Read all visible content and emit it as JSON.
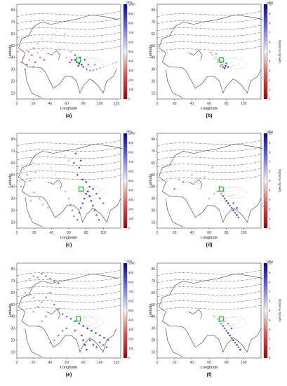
{
  "figure": {
    "panels": [
      {
        "label": "(a)",
        "unit": "hPa",
        "cbar_title": "",
        "cbar_ticks": [
          0,
          100,
          200,
          300,
          400,
          500,
          600,
          700,
          800,
          900,
          1000
        ],
        "x_ticks": [
          0,
          20,
          40,
          60,
          80,
          100,
          120
        ],
        "y_ticks": [
          10,
          20,
          30,
          40,
          50,
          60,
          70,
          80
        ],
        "xlabel": "Longitude",
        "ylabel": "Latitude"
      },
      {
        "label": "(b)",
        "unit": "g/kg",
        "cbar_title": "Specific Humidity",
        "cbar_ticks": [
          0,
          1,
          2,
          3,
          4,
          5,
          6,
          7,
          8,
          9,
          10
        ],
        "x_ticks": [
          0,
          20,
          40,
          60,
          80,
          100
        ],
        "y_ticks": [
          10,
          20,
          30,
          40,
          50,
          60,
          70,
          80
        ],
        "xlabel": "Longitude",
        "ylabel": "Latitude"
      },
      {
        "label": "(c)",
        "unit": "hPa",
        "cbar_title": "",
        "cbar_ticks": [
          0,
          100,
          200,
          300,
          400,
          500,
          600,
          700,
          800,
          900,
          1000
        ],
        "x_ticks": [
          0,
          20,
          40,
          60,
          80,
          100
        ],
        "y_ticks": [
          10,
          20,
          30,
          40,
          50,
          60,
          70,
          80
        ],
        "xlabel": "Longitude",
        "ylabel": "Latitude"
      },
      {
        "label": "(d)",
        "unit": "g/kg",
        "cbar_title": "Specific Humidity",
        "cbar_ticks": [
          0,
          1,
          2,
          3,
          4,
          5,
          6,
          7,
          8,
          9,
          10
        ],
        "x_ticks": [
          0,
          20,
          40,
          60,
          80,
          100
        ],
        "y_ticks": [
          10,
          20,
          30,
          40,
          50,
          60,
          70,
          80
        ],
        "xlabel": "Longitude",
        "ylabel": "Latitude"
      },
      {
        "label": "(e)",
        "unit": "hPa",
        "cbar_title": "",
        "cbar_ticks": [
          0,
          100,
          200,
          300,
          400,
          500,
          600,
          700,
          800,
          900,
          1000
        ],
        "x_ticks": [
          0,
          20,
          40,
          60,
          80,
          100,
          120
        ],
        "y_ticks": [
          10,
          20,
          30,
          40,
          50,
          60,
          70,
          80
        ],
        "xlabel": "Longitude",
        "ylabel": "Latitude"
      },
      {
        "label": "(f)",
        "unit": "g/kg",
        "cbar_title": "Specific Humidity",
        "cbar_ticks": [
          0,
          1,
          2,
          3,
          4,
          5,
          6,
          7,
          8,
          9,
          10
        ],
        "x_ticks": [
          0,
          20,
          40,
          60,
          80,
          100
        ],
        "y_ticks": [
          10,
          20,
          30,
          40,
          50,
          60,
          70,
          80
        ],
        "xlabel": "Longitude",
        "ylabel": "Latitude"
      }
    ]
  },
  "colors": {
    "low": "#c81e1e",
    "mid": "#f0f0f0",
    "high": "#1e1ec8",
    "source": "#22bb22",
    "coast": "#5a5a5a",
    "contour": "#888888"
  },
  "chart_data": [
    {
      "type": "scatter",
      "title": "",
      "xlabel": "Longitude",
      "ylabel": "Latitude",
      "xlim": [
        0,
        125
      ],
      "ylim": [
        5,
        85
      ],
      "colorbar": {
        "label": "hPa",
        "range": [
          0,
          1000
        ]
      },
      "points": [
        [
          8,
          40,
          250
        ],
        [
          12,
          34,
          180
        ],
        [
          15,
          38,
          300
        ],
        [
          18,
          42,
          220
        ],
        [
          22,
          36,
          150
        ],
        [
          25,
          44,
          380
        ],
        [
          28,
          40,
          260
        ],
        [
          30,
          46,
          420
        ],
        [
          33,
          38,
          200
        ],
        [
          36,
          48,
          460
        ],
        [
          40,
          52,
          500
        ],
        [
          42,
          56,
          540
        ],
        [
          45,
          60,
          560
        ],
        [
          48,
          62,
          520
        ],
        [
          52,
          64,
          480
        ],
        [
          55,
          58,
          520
        ],
        [
          58,
          60,
          600
        ],
        [
          35,
          62,
          480
        ],
        [
          38,
          68,
          440
        ],
        [
          25,
          52,
          360
        ],
        [
          20,
          48,
          300
        ],
        [
          30,
          56,
          420
        ],
        [
          44,
          44,
          520
        ],
        [
          50,
          48,
          560
        ],
        [
          60,
          40,
          620
        ],
        [
          66,
          38,
          820
        ],
        [
          70,
          38,
          880
        ],
        [
          72,
          36,
          900
        ],
        [
          75,
          35,
          920
        ],
        [
          78,
          34,
          880
        ],
        [
          80,
          32,
          820
        ],
        [
          84,
          30,
          760
        ],
        [
          88,
          29,
          700
        ],
        [
          92,
          29,
          680
        ],
        [
          96,
          30,
          640
        ],
        [
          100,
          31,
          600
        ],
        [
          104,
          32,
          560
        ],
        [
          108,
          33,
          520
        ],
        [
          112,
          34,
          500
        ],
        [
          116,
          35,
          420
        ],
        [
          120,
          36,
          380
        ],
        [
          76,
          40,
          860
        ],
        [
          82,
          38,
          800
        ],
        [
          70,
          42,
          780
        ],
        [
          86,
          34,
          740
        ],
        [
          94,
          34,
          680
        ],
        [
          64,
          36,
          780
        ],
        [
          74,
          33,
          860
        ],
        [
          10,
          30,
          220
        ],
        [
          14,
          45,
          260
        ],
        [
          6,
          36,
          180
        ],
        [
          20,
          32,
          200
        ],
        [
          60,
          50,
          520
        ],
        [
          65,
          45,
          640
        ]
      ]
    },
    {
      "type": "scatter",
      "title": "",
      "xlabel": "Longitude",
      "ylabel": "Latitude",
      "xlim": [
        0,
        120
      ],
      "ylim": [
        5,
        85
      ],
      "colorbar": {
        "label": "Specific Humidity (g/kg)",
        "range": [
          0,
          10
        ]
      },
      "points": [
        [
          62,
          44,
          3
        ],
        [
          64,
          42,
          4
        ],
        [
          66,
          40,
          5
        ],
        [
          68,
          40,
          6
        ],
        [
          70,
          38,
          6
        ],
        [
          72,
          38,
          7
        ],
        [
          74,
          36,
          8
        ],
        [
          75,
          34,
          7
        ],
        [
          76,
          32,
          8
        ],
        [
          78,
          31,
          9
        ],
        [
          74,
          40,
          4
        ],
        [
          70,
          36,
          6
        ],
        [
          73,
          33,
          7
        ],
        [
          77,
          37,
          5
        ],
        [
          80,
          35,
          8
        ],
        [
          68,
          43,
          3
        ],
        [
          65,
          38,
          5
        ],
        [
          79,
          33,
          9
        ],
        [
          82,
          32,
          8
        ]
      ]
    },
    {
      "type": "scatter",
      "title": "",
      "xlabel": "Longitude",
      "ylabel": "Latitude",
      "xlim": [
        0,
        120
      ],
      "ylim": [
        5,
        85
      ],
      "colorbar": {
        "label": "hPa",
        "range": [
          0,
          1000
        ]
      },
      "points": [
        [
          5,
          40,
          300
        ],
        [
          8,
          55,
          380
        ],
        [
          12,
          50,
          320
        ],
        [
          15,
          45,
          300
        ],
        [
          18,
          60,
          420
        ],
        [
          22,
          52,
          380
        ],
        [
          25,
          58,
          440
        ],
        [
          28,
          65,
          480
        ],
        [
          32,
          70,
          520
        ],
        [
          36,
          64,
          500
        ],
        [
          40,
          56,
          460
        ],
        [
          44,
          50,
          480
        ],
        [
          48,
          45,
          520
        ],
        [
          52,
          40,
          560
        ],
        [
          56,
          36,
          600
        ],
        [
          60,
          30,
          640
        ],
        [
          62,
          25,
          680
        ],
        [
          64,
          20,
          700
        ],
        [
          66,
          15,
          720
        ],
        [
          70,
          12,
          760
        ],
        [
          72,
          18,
          800
        ],
        [
          74,
          22,
          820
        ],
        [
          76,
          26,
          840
        ],
        [
          78,
          30,
          860
        ],
        [
          80,
          34,
          880
        ],
        [
          82,
          36,
          900
        ],
        [
          84,
          32,
          880
        ],
        [
          86,
          28,
          860
        ],
        [
          88,
          24,
          840
        ],
        [
          90,
          20,
          820
        ],
        [
          92,
          16,
          800
        ],
        [
          95,
          12,
          780
        ],
        [
          70,
          50,
          820
        ],
        [
          72,
          56,
          840
        ],
        [
          74,
          62,
          860
        ],
        [
          66,
          60,
          800
        ],
        [
          68,
          68,
          820
        ],
        [
          76,
          46,
          880
        ],
        [
          80,
          44,
          860
        ],
        [
          84,
          40,
          840
        ],
        [
          88,
          38,
          820
        ],
        [
          92,
          34,
          800
        ],
        [
          96,
          30,
          780
        ],
        [
          100,
          26,
          760
        ],
        [
          60,
          62,
          600
        ],
        [
          56,
          66,
          560
        ],
        [
          10,
          30,
          300
        ],
        [
          16,
          28,
          340
        ],
        [
          20,
          35,
          300
        ],
        [
          26,
          30,
          340
        ],
        [
          30,
          25,
          360
        ],
        [
          36,
          22,
          380
        ],
        [
          42,
          18,
          400
        ],
        [
          48,
          14,
          420
        ]
      ]
    },
    {
      "type": "scatter",
      "title": "",
      "xlabel": "Longitude",
      "ylabel": "Latitude",
      "xlim": [
        0,
        120
      ],
      "ylim": [
        5,
        85
      ],
      "colorbar": {
        "label": "Specific Humidity (g/kg)",
        "range": [
          0,
          10
        ]
      },
      "points": [
        [
          20,
          38,
          2
        ],
        [
          25,
          46,
          3
        ],
        [
          30,
          44,
          2
        ],
        [
          40,
          50,
          4
        ],
        [
          48,
          38,
          5
        ],
        [
          55,
          32,
          5
        ],
        [
          60,
          30,
          6
        ],
        [
          66,
          34,
          6
        ],
        [
          70,
          36,
          7
        ],
        [
          74,
          34,
          7
        ],
        [
          76,
          32,
          8
        ],
        [
          78,
          30,
          8
        ],
        [
          80,
          28,
          9
        ],
        [
          82,
          26,
          9
        ],
        [
          84,
          24,
          8
        ],
        [
          86,
          22,
          8
        ],
        [
          88,
          20,
          9
        ],
        [
          90,
          18,
          8
        ],
        [
          92,
          16,
          9
        ],
        [
          94,
          14,
          8
        ],
        [
          88,
          26,
          8
        ],
        [
          92,
          22,
          9
        ],
        [
          72,
          40,
          6
        ],
        [
          68,
          44,
          5
        ],
        [
          60,
          52,
          4
        ],
        [
          55,
          48,
          4
        ],
        [
          64,
          56,
          3
        ]
      ]
    },
    {
      "type": "scatter",
      "title": "",
      "xlabel": "Longitude",
      "ylabel": "Latitude",
      "xlim": [
        0,
        125
      ],
      "ylim": [
        5,
        85
      ],
      "colorbar": {
        "label": "hPa",
        "range": [
          0,
          1000
        ]
      },
      "points": [
        [
          10,
          70,
          600
        ],
        [
          15,
          72,
          640
        ],
        [
          20,
          74,
          680
        ],
        [
          25,
          73,
          700
        ],
        [
          30,
          76,
          720
        ],
        [
          35,
          74,
          740
        ],
        [
          40,
          72,
          760
        ],
        [
          45,
          70,
          780
        ],
        [
          50,
          68,
          760
        ],
        [
          40,
          60,
          720
        ],
        [
          35,
          56,
          700
        ],
        [
          30,
          52,
          680
        ],
        [
          25,
          48,
          660
        ],
        [
          20,
          44,
          640
        ],
        [
          45,
          50,
          720
        ],
        [
          50,
          46,
          740
        ],
        [
          55,
          42,
          760
        ],
        [
          60,
          40,
          780
        ],
        [
          65,
          38,
          800
        ],
        [
          70,
          36,
          820
        ],
        [
          75,
          34,
          840
        ],
        [
          80,
          32,
          860
        ],
        [
          85,
          30,
          880
        ],
        [
          90,
          28,
          900
        ],
        [
          95,
          26,
          880
        ],
        [
          100,
          24,
          860
        ],
        [
          105,
          22,
          840
        ],
        [
          110,
          20,
          820
        ],
        [
          80,
          20,
          880
        ],
        [
          82,
          16,
          900
        ],
        [
          84,
          12,
          880
        ],
        [
          78,
          24,
          860
        ],
        [
          70,
          28,
          820
        ],
        [
          88,
          20,
          880
        ],
        [
          92,
          16,
          860
        ],
        [
          96,
          14,
          840
        ],
        [
          100,
          18,
          820
        ],
        [
          104,
          16,
          800
        ],
        [
          108,
          14,
          780
        ],
        [
          60,
          30,
          760
        ],
        [
          55,
          28,
          740
        ],
        [
          50,
          24,
          720
        ],
        [
          45,
          20,
          700
        ],
        [
          40,
          18,
          680
        ],
        [
          10,
          60,
          620
        ],
        [
          15,
          64,
          660
        ],
        [
          20,
          56,
          640
        ],
        [
          35,
          40,
          680
        ],
        [
          30,
          36,
          660
        ],
        [
          26,
          32,
          640
        ]
      ]
    },
    {
      "type": "scatter",
      "title": "",
      "xlabel": "Longitude",
      "ylabel": "Latitude",
      "xlim": [
        0,
        120
      ],
      "ylim": [
        5,
        85
      ],
      "colorbar": {
        "label": "Specific Humidity (g/kg)",
        "range": [
          0,
          10
        ]
      },
      "points": [
        [
          64,
          42,
          5
        ],
        [
          66,
          40,
          6
        ],
        [
          70,
          38,
          6
        ],
        [
          72,
          36,
          7
        ],
        [
          74,
          34,
          7
        ],
        [
          76,
          32,
          8
        ],
        [
          78,
          30,
          8
        ],
        [
          80,
          28,
          8
        ],
        [
          82,
          26,
          9
        ],
        [
          84,
          24,
          9
        ],
        [
          86,
          22,
          8
        ],
        [
          88,
          20,
          9
        ],
        [
          90,
          18,
          8
        ],
        [
          92,
          16,
          9
        ],
        [
          94,
          14,
          8
        ],
        [
          96,
          12,
          9
        ],
        [
          74,
          40,
          5
        ],
        [
          78,
          36,
          6
        ],
        [
          82,
          34,
          7
        ],
        [
          86,
          30,
          8
        ]
      ]
    }
  ]
}
